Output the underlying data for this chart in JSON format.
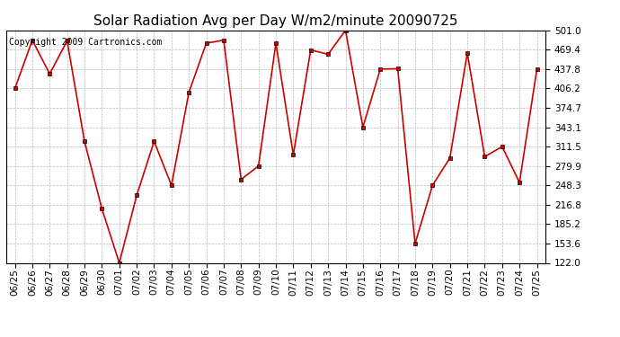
{
  "title": "Solar Radiation Avg per Day W/m2/minute 20090725",
  "copyright": "Copyright 2009 Cartronics.com",
  "dates": [
    "06/25",
    "06/26",
    "06/27",
    "06/28",
    "06/29",
    "06/30",
    "07/01",
    "07/02",
    "07/03",
    "07/04",
    "07/05",
    "07/06",
    "07/07",
    "07/08",
    "07/09",
    "07/10",
    "07/11",
    "07/12",
    "07/13",
    "07/14",
    "07/15",
    "07/16",
    "07/17",
    "07/18",
    "07/19",
    "07/20",
    "07/21",
    "07/22",
    "07/23",
    "07/24",
    "07/25"
  ],
  "values": [
    406.2,
    485.0,
    430.0,
    484.0,
    320.0,
    210.0,
    122.0,
    232.0,
    320.0,
    248.3,
    400.0,
    480.0,
    485.0,
    258.0,
    280.0,
    480.0,
    298.0,
    469.0,
    462.0,
    501.0,
    343.1,
    437.8,
    438.5,
    153.6,
    248.3,
    293.0,
    464.0,
    295.0,
    311.5,
    253.0,
    437.8
  ],
  "ymin": 122.0,
  "ymax": 501.0,
  "yticks": [
    122.0,
    153.6,
    185.2,
    216.8,
    248.3,
    279.9,
    311.5,
    343.1,
    374.7,
    406.2,
    437.8,
    469.4,
    501.0
  ],
  "line_color": "#cc0000",
  "marker_color": "#000000",
  "background_color": "#ffffff",
  "grid_color": "#bbbbbb",
  "title_fontsize": 11,
  "tick_fontsize": 7.5,
  "copyright_fontsize": 7
}
